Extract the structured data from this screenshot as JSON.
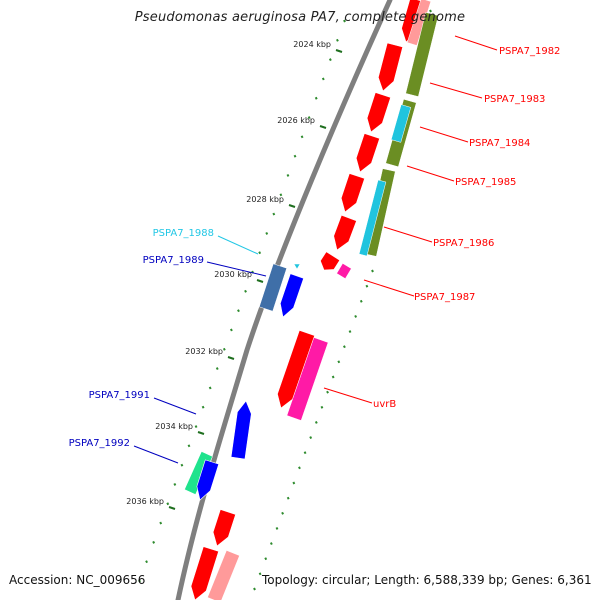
{
  "header": {
    "title": "Pseudomonas aeruginosa PA7, complete genome"
  },
  "footer": {
    "accession": "Accession: NC_009656",
    "summary": "Topology: circular; Length: 6,588,339 bp; Genes: 6,361"
  },
  "colors": {
    "backbone": "#7f7f7f",
    "tick_dots": "#2e8b2e",
    "major_ticks": "#1f6f1f",
    "red_gene": "#ff0000",
    "pink_gene": "#ff9a9a",
    "magenta_gene": "#ff1aa6",
    "blue_gene": "#0000ff",
    "steel_gene": "#3f6fa8",
    "olive_gene": "#6b8e23",
    "cyan_gene": "#20c4de",
    "green_gene": "#1fe38d",
    "label_red": "#ff0000",
    "label_blue": "#0000bf",
    "label_cyan": "#22c7e5"
  },
  "scale": {
    "ticks": [
      "2024 kbp",
      "2026 kbp",
      "2028 kbp",
      "2030 kbp",
      "2032 kbp",
      "2034 kbp",
      "2036 kbp"
    ]
  },
  "labels": {
    "right": [
      {
        "text": "PSPA7_1982",
        "color": "label_red"
      },
      {
        "text": "PSPA7_1983",
        "color": "label_red"
      },
      {
        "text": "PSPA7_1984",
        "color": "label_red"
      },
      {
        "text": "PSPA7_1985",
        "color": "label_red"
      },
      {
        "text": "PSPA7_1986",
        "color": "label_red"
      },
      {
        "text": "PSPA7_1987",
        "color": "label_red"
      },
      {
        "text": "uvrB",
        "color": "label_red"
      }
    ],
    "left": [
      {
        "text": "PSPA7_1988",
        "color": "label_cyan"
      },
      {
        "text": "PSPA7_1989",
        "color": "label_blue"
      },
      {
        "text": "PSPA7_1991",
        "color": "label_blue"
      },
      {
        "text": "PSPA7_1992",
        "color": "label_blue"
      }
    ]
  },
  "tracks": {
    "outer": [
      {
        "color": "red_gene"
      },
      {
        "color": "red_gene"
      },
      {
        "color": "red_gene"
      },
      {
        "color": "red_gene"
      },
      {
        "color": "red_gene"
      },
      {
        "color": "red_gene"
      },
      {
        "color": "red_gene"
      },
      {
        "color": "red_gene"
      },
      {
        "color": "red_gene"
      },
      {
        "color": "red_gene"
      }
    ],
    "outer_extra": [
      {
        "color": "pink_gene"
      },
      {
        "color": "olive_gene"
      },
      {
        "color": "olive_gene"
      },
      {
        "color": "cyan_gene"
      },
      {
        "color": "olive_gene"
      },
      {
        "color": "cyan_gene"
      },
      {
        "color": "magenta_gene"
      },
      {
        "color": "magenta_gene"
      },
      {
        "color": "pink_gene"
      }
    ],
    "inner": [
      {
        "color": "steel_gene"
      },
      {
        "color": "blue_gene"
      },
      {
        "color": "cyan_gene"
      },
      {
        "color": "blue_gene"
      },
      {
        "color": "green_gene"
      },
      {
        "color": "blue_gene"
      }
    ]
  }
}
